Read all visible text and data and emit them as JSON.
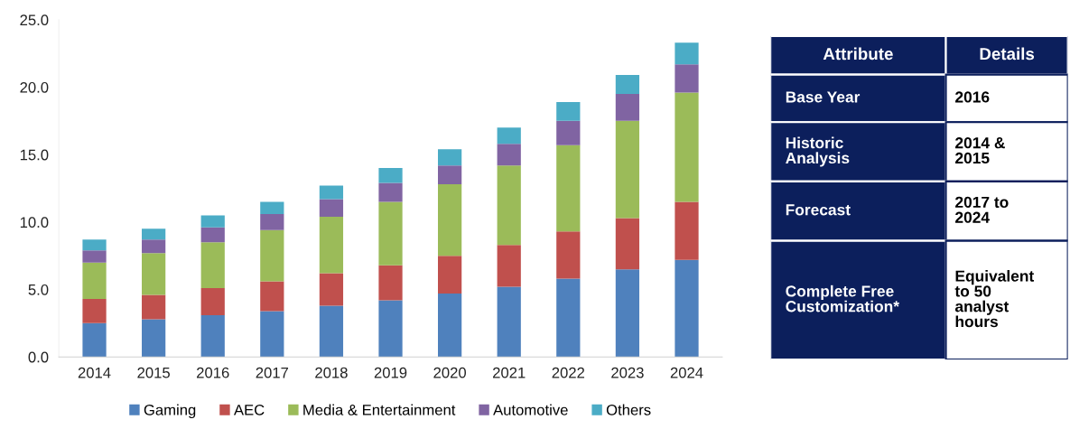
{
  "chart_data": [
    {
      "type": "bar",
      "stacked": true,
      "categories": [
        "2014",
        "2015",
        "2016",
        "2017",
        "2018",
        "2019",
        "2020",
        "2021",
        "2022",
        "2023",
        "2024"
      ],
      "series": [
        {
          "name": "Gaming",
          "color": "#4f81bd",
          "values": [
            2.5,
            2.8,
            3.1,
            3.4,
            3.8,
            4.2,
            4.7,
            5.2,
            5.8,
            6.5,
            7.2
          ]
        },
        {
          "name": "AEC",
          "color": "#c0504d",
          "values": [
            1.8,
            1.8,
            2.0,
            2.2,
            2.4,
            2.6,
            2.8,
            3.1,
            3.5,
            3.8,
            4.3
          ]
        },
        {
          "name": "Media & Entertainment",
          "color": "#9bbb59",
          "values": [
            2.7,
            3.1,
            3.4,
            3.8,
            4.2,
            4.7,
            5.3,
            5.9,
            6.4,
            7.2,
            8.1
          ]
        },
        {
          "name": "Automotive",
          "color": "#8064a2",
          "values": [
            0.9,
            1.0,
            1.1,
            1.2,
            1.3,
            1.4,
            1.4,
            1.6,
            1.8,
            2.0,
            2.1
          ]
        },
        {
          "name": "Others",
          "color": "#4bacc6",
          "values": [
            0.8,
            0.8,
            0.9,
            0.9,
            1.0,
            1.1,
            1.2,
            1.2,
            1.4,
            1.4,
            1.6
          ]
        }
      ],
      "ylim": [
        0,
        25
      ],
      "yticks": [
        {
          "value": 0,
          "label": "0.0"
        },
        {
          "value": 5,
          "label": "5.0"
        },
        {
          "value": 10,
          "label": "10.0"
        },
        {
          "value": 15,
          "label": "15.0"
        },
        {
          "value": 20,
          "label": "20.0"
        },
        {
          "value": 25,
          "label": "25.0"
        }
      ],
      "legend": "bottom"
    },
    {
      "type": "other",
      "annotations": [
        "Attribute",
        "Details",
        "Base Year",
        "2016",
        "Historic\nAnalysis",
        "2014 &\n2015",
        "Forecast",
        "2017 to\n2024",
        "Complete Free\nCustomization*",
        "Equivalent\nto 50\nanalyst\nhours"
      ]
    }
  ]
}
